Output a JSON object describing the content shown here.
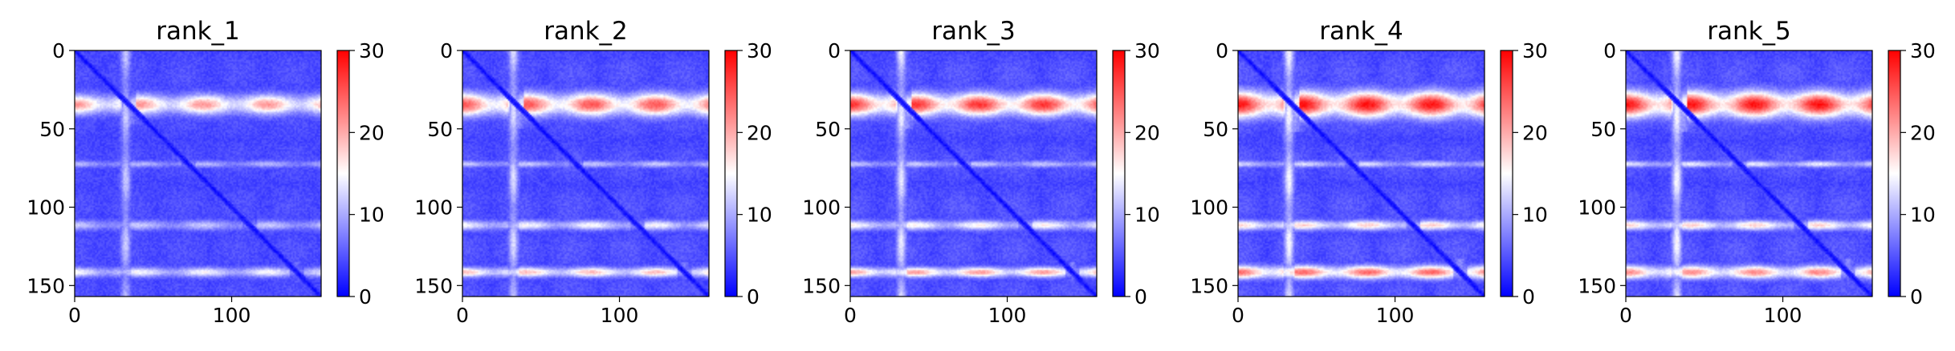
{
  "figure": {
    "colormap": {
      "name": "bwr",
      "low": "#0000ff",
      "mid": "#ffffff",
      "high": "#ff0000"
    }
  },
  "chart_data": [
    {
      "type": "heatmap",
      "title": "rank_1",
      "xlabel": "",
      "ylabel": "",
      "xlim": [
        0,
        157
      ],
      "ylim": [
        157,
        0
      ],
      "xticks": [
        "0",
        "100"
      ],
      "yticks": [
        "0",
        "50",
        "100",
        "150"
      ],
      "colorbar": {
        "range": [
          0,
          30
        ],
        "ticks": [
          "0",
          "10",
          "20",
          "30"
        ]
      },
      "matrix_size": 157,
      "baseline_value": 4,
      "diagonal_value": 0.5,
      "feature_scale": 0.6,
      "bands": [
        {
          "orientation": "row",
          "center": 34,
          "width": 6,
          "value": 21
        },
        {
          "orientation": "row",
          "center": 72,
          "width": 2,
          "value": 11
        },
        {
          "orientation": "row",
          "center": 111,
          "width": 3,
          "value": 12
        },
        {
          "orientation": "row",
          "center": 141,
          "width": 3,
          "value": 15
        },
        {
          "orientation": "col",
          "center": 32,
          "width": 3,
          "value": 12
        }
      ]
    },
    {
      "type": "heatmap",
      "title": "rank_2",
      "xlabel": "",
      "ylabel": "",
      "xlim": [
        0,
        157
      ],
      "ylim": [
        157,
        0
      ],
      "xticks": [
        "0",
        "100"
      ],
      "yticks": [
        "0",
        "50",
        "100",
        "150"
      ],
      "colorbar": {
        "range": [
          0,
          30
        ],
        "ticks": [
          "0",
          "10",
          "20",
          "30"
        ]
      },
      "matrix_size": 157,
      "baseline_value": 4,
      "diagonal_value": 0.5,
      "feature_scale": 0.85,
      "bands": [
        {
          "orientation": "row",
          "center": 34,
          "width": 7,
          "value": 25
        },
        {
          "orientation": "row",
          "center": 72,
          "width": 2,
          "value": 12
        },
        {
          "orientation": "row",
          "center": 111,
          "width": 3,
          "value": 15
        },
        {
          "orientation": "row",
          "center": 141,
          "width": 3,
          "value": 19
        },
        {
          "orientation": "col",
          "center": 32,
          "width": 3,
          "value": 13
        }
      ]
    },
    {
      "type": "heatmap",
      "title": "rank_3",
      "xlabel": "",
      "ylabel": "",
      "xlim": [
        0,
        157
      ],
      "ylim": [
        157,
        0
      ],
      "xticks": [
        "0",
        "100"
      ],
      "yticks": [
        "0",
        "50",
        "100",
        "150"
      ],
      "colorbar": {
        "range": [
          0,
          30
        ],
        "ticks": [
          "0",
          "10",
          "20",
          "30"
        ]
      },
      "matrix_size": 157,
      "baseline_value": 4,
      "diagonal_value": 0.5,
      "feature_scale": 0.95,
      "bands": [
        {
          "orientation": "row",
          "center": 34,
          "width": 7,
          "value": 27
        },
        {
          "orientation": "row",
          "center": 72,
          "width": 2,
          "value": 12
        },
        {
          "orientation": "row",
          "center": 111,
          "width": 3,
          "value": 16
        },
        {
          "orientation": "row",
          "center": 141,
          "width": 3,
          "value": 21
        },
        {
          "orientation": "col",
          "center": 32,
          "width": 3,
          "value": 14
        }
      ]
    },
    {
      "type": "heatmap",
      "title": "rank_4",
      "xlabel": "",
      "ylabel": "",
      "xlim": [
        0,
        157
      ],
      "ylim": [
        157,
        0
      ],
      "xticks": [
        "0",
        "100"
      ],
      "yticks": [
        "0",
        "50",
        "100",
        "150"
      ],
      "colorbar": {
        "range": [
          0,
          30
        ],
        "ticks": [
          "0",
          "10",
          "20",
          "30"
        ]
      },
      "matrix_size": 157,
      "baseline_value": 4,
      "diagonal_value": 0.5,
      "feature_scale": 1.0,
      "bands": [
        {
          "orientation": "row",
          "center": 34,
          "width": 8,
          "value": 29
        },
        {
          "orientation": "row",
          "center": 72,
          "width": 2,
          "value": 13
        },
        {
          "orientation": "row",
          "center": 111,
          "width": 3,
          "value": 18
        },
        {
          "orientation": "row",
          "center": 141,
          "width": 4,
          "value": 24
        },
        {
          "orientation": "col",
          "center": 32,
          "width": 3,
          "value": 15
        }
      ]
    },
    {
      "type": "heatmap",
      "title": "rank_5",
      "xlabel": "",
      "ylabel": "",
      "xlim": [
        0,
        157
      ],
      "ylim": [
        157,
        0
      ],
      "xticks": [
        "0",
        "100"
      ],
      "yticks": [
        "0",
        "50",
        "100",
        "150"
      ],
      "colorbar": {
        "range": [
          0,
          30
        ],
        "ticks": [
          "0",
          "10",
          "20",
          "30"
        ]
      },
      "matrix_size": 157,
      "baseline_value": 4,
      "diagonal_value": 0.5,
      "feature_scale": 1.0,
      "bands": [
        {
          "orientation": "row",
          "center": 34,
          "width": 8,
          "value": 29
        },
        {
          "orientation": "row",
          "center": 72,
          "width": 2,
          "value": 14
        },
        {
          "orientation": "row",
          "center": 111,
          "width": 3,
          "value": 18
        },
        {
          "orientation": "row",
          "center": 141,
          "width": 4,
          "value": 22
        },
        {
          "orientation": "col",
          "center": 32,
          "width": 3,
          "value": 15
        }
      ]
    }
  ]
}
